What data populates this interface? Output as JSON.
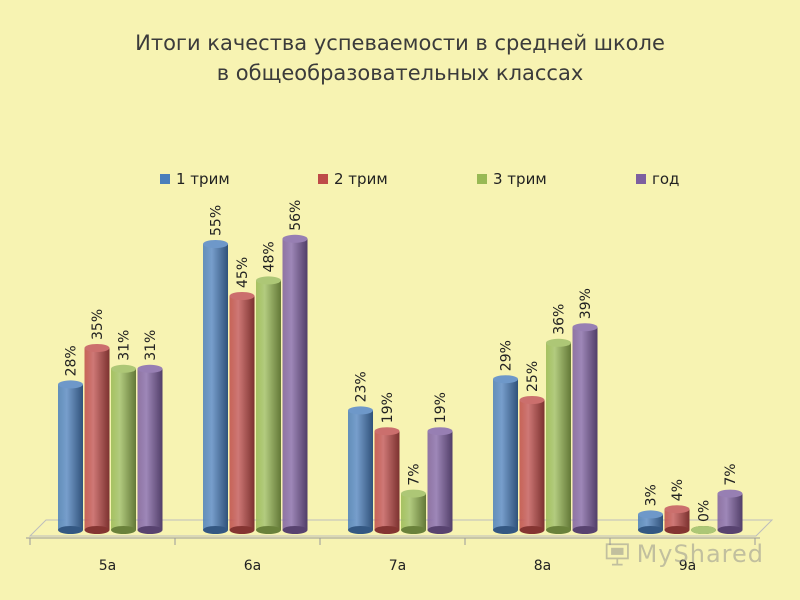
{
  "chart_data": {
    "type": "bar",
    "title": [
      "Итоги качества успеваемости в средней школе",
      "в общеобразовательных классах"
    ],
    "categories": [
      "5а",
      "6а",
      "7а",
      "8а",
      "9а"
    ],
    "series": [
      {
        "name": "1 трим",
        "color": "#4a7ebb",
        "values": [
          28,
          55,
          23,
          29,
          3
        ],
        "labels": [
          "28%",
          "55%",
          "23%",
          "29%",
          "3%"
        ]
      },
      {
        "name": "2 трим",
        "color": "#be4b48",
        "values": [
          35,
          45,
          19,
          25,
          4
        ],
        "labels": [
          "35%",
          "45%",
          "19%",
          "25%",
          "4%"
        ]
      },
      {
        "name": "3 трим",
        "color": "#98b954",
        "values": [
          31,
          48,
          7,
          36,
          0
        ],
        "labels": [
          "31%",
          "48%",
          "7%",
          "36%",
          "0%"
        ]
      },
      {
        "name": "год",
        "color": "#7d5fa0",
        "values": [
          31,
          56,
          19,
          39,
          7
        ],
        "labels": [
          "31%",
          "56%",
          "19%",
          "39%",
          "7%"
        ]
      }
    ],
    "legend_position": "top",
    "ylim": [
      0,
      60
    ],
    "grid": false
  },
  "watermark": {
    "text": "MyShared",
    "icon": "presentation-icon"
  }
}
